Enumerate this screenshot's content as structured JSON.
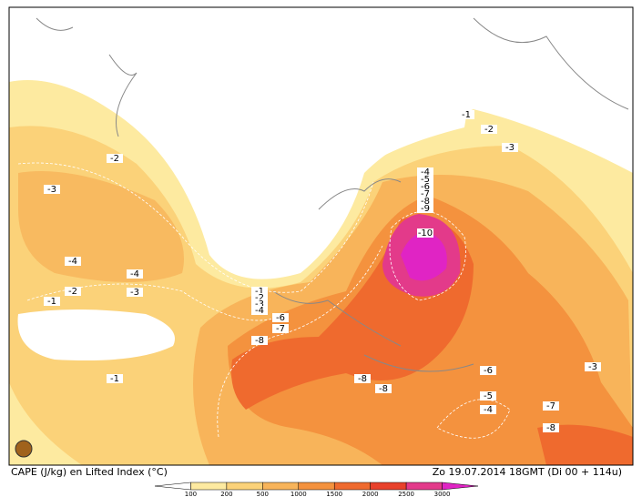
{
  "caption": "CAPE (J/kg) en Lifted Index (°C)",
  "timestamp": "Zo 19.07.2014 18GMT (Di 00 + 114u)",
  "legend": {
    "labels": [
      100,
      200,
      500,
      1000,
      1500,
      2000,
      2500,
      3000
    ],
    "colors": [
      "#ffffff",
      "#fdeaa0",
      "#fbd279",
      "#f8b45a",
      "#f4923e",
      "#ef6a2e",
      "#e8412b",
      "#e33a8a",
      "#e024c4"
    ]
  },
  "contour_labels": [
    -1,
    -2,
    -3,
    -2,
    -3,
    -4,
    -5,
    -6,
    -7,
    -8,
    -9,
    -10,
    -4,
    -4,
    -2,
    -3,
    -1,
    -1,
    -2,
    -3,
    -4,
    -6,
    -7,
    -8,
    -1,
    -8,
    -8,
    -6,
    -3,
    -5,
    -4,
    -7,
    -8
  ]
}
